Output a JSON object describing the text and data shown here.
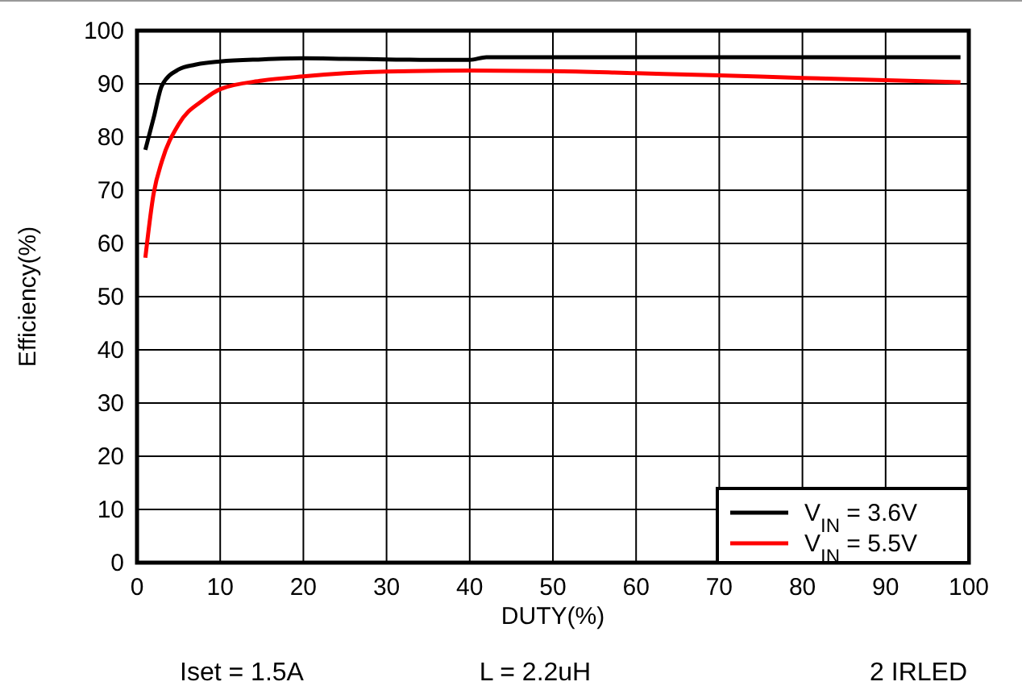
{
  "chart_data": {
    "type": "line",
    "xlabel": "DUTY(%)",
    "ylabel": "Efficiency(%)",
    "xlim": [
      0,
      100
    ],
    "ylim": [
      0,
      100
    ],
    "xticks": [
      0,
      10,
      20,
      30,
      40,
      50,
      60,
      70,
      80,
      90,
      100
    ],
    "yticks": [
      0,
      10,
      20,
      30,
      40,
      50,
      60,
      70,
      80,
      90,
      100
    ],
    "grid": true,
    "legend": "bottom right",
    "marker": "none",
    "line_style": "solid",
    "annotations": [
      "Iset = 1.5A",
      "L = 2.2uH",
      "2 IRLED"
    ],
    "series": [
      {
        "name": "V$_{IN}$ = 3.6V",
        "color": "#000000",
        "x": [
          1,
          2,
          3,
          5,
          7,
          10,
          15,
          20,
          25,
          30,
          35,
          40,
          42,
          50,
          60,
          70,
          80,
          90,
          99
        ],
        "values": [
          77.6,
          83.6,
          89.7,
          92.7,
          93.6,
          94.2,
          94.6,
          94.8,
          94.7,
          94.6,
          94.5,
          94.5,
          95,
          95,
          95,
          95,
          95,
          95,
          95
        ]
      },
      {
        "name": "V$_{IN}$ = 5.5V",
        "color": "#ff0000",
        "x": [
          1,
          2,
          3,
          5,
          8,
          10,
          15,
          20,
          30,
          40,
          50,
          60,
          70,
          80,
          90,
          99
        ],
        "values": [
          57.3,
          69.4,
          75.5,
          82.4,
          87,
          89,
          90.6,
          91.4,
          92.3,
          92.5,
          92.4,
          92,
          91.6,
          91.1,
          90.7,
          90.3
        ]
      }
    ]
  }
}
